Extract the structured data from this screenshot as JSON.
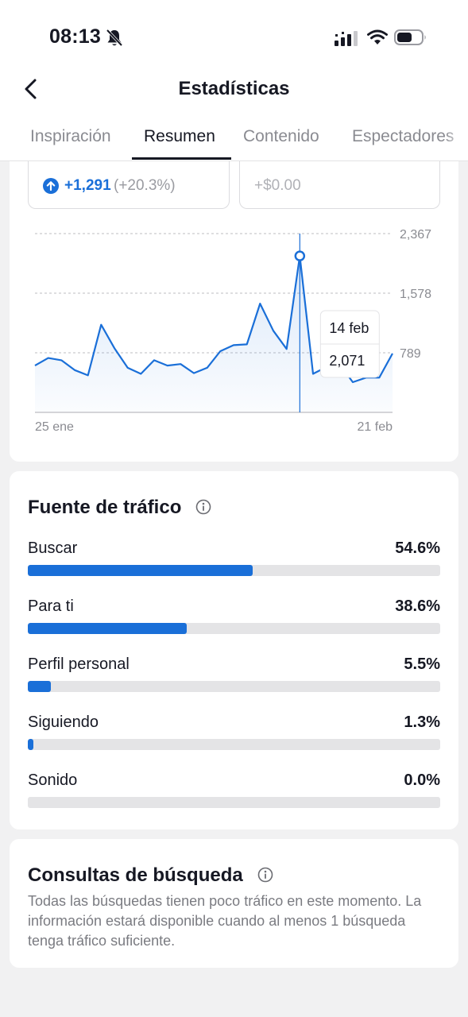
{
  "status_bar": {
    "time": "08:13"
  },
  "header": {
    "title": "Estadísticas",
    "back_icon": "chevron-left-icon"
  },
  "tabs": [
    {
      "label": "Inspiración",
      "active": false
    },
    {
      "label": "Resumen",
      "active": true
    },
    {
      "label": "Contenido",
      "active": false
    },
    {
      "label": "Espectadores",
      "active": false
    }
  ],
  "summary": {
    "change_value": "+1,291",
    "change_pct": "(+20.3%)",
    "revenue": "+$0.00"
  },
  "tooltip": {
    "date": "14 feb",
    "value": "2,071"
  },
  "chart_data": {
    "type": "area",
    "series": [
      {
        "values": [
          620,
          720,
          690,
          560,
          490,
          1160,
          850,
          590,
          510,
          690,
          620,
          640,
          520,
          590,
          810,
          890,
          900,
          1440,
          1080,
          840,
          2071,
          510,
          600,
          640,
          400,
          460,
          460,
          780
        ]
      }
    ],
    "x_tick_labels": [
      "25 ene",
      "21 feb"
    ],
    "y_tick_labels": [
      "2,367",
      "1,578",
      "789"
    ],
    "y_ticks": [
      2367,
      1578,
      789
    ],
    "ylim": [
      0,
      2367
    ],
    "highlight_index": 20,
    "grid": "dashed horizontal",
    "color": "#1a6fd8"
  },
  "traffic": {
    "title": "Fuente de tráfico",
    "items": [
      {
        "label": "Buscar",
        "value": "54.6%",
        "fraction": 0.546
      },
      {
        "label": "Para ti",
        "value": "38.6%",
        "fraction": 0.386
      },
      {
        "label": "Perfil personal",
        "value": "5.5%",
        "fraction": 0.055
      },
      {
        "label": "Siguiendo",
        "value": "1.3%",
        "fraction": 0.013
      },
      {
        "label": "Sonido",
        "value": "0.0%",
        "fraction": 0.0
      }
    ]
  },
  "search": {
    "title": "Consultas de búsqueda",
    "description": "Todas las búsquedas tienen poco tráfico en este momento. La información estará disponible cuando al menos 1 búsqueda tenga tráfico suficiente."
  },
  "colors": {
    "accent": "#1a6fd8",
    "bar_track": "#e4e4e6",
    "background": "#f1f1f2"
  }
}
